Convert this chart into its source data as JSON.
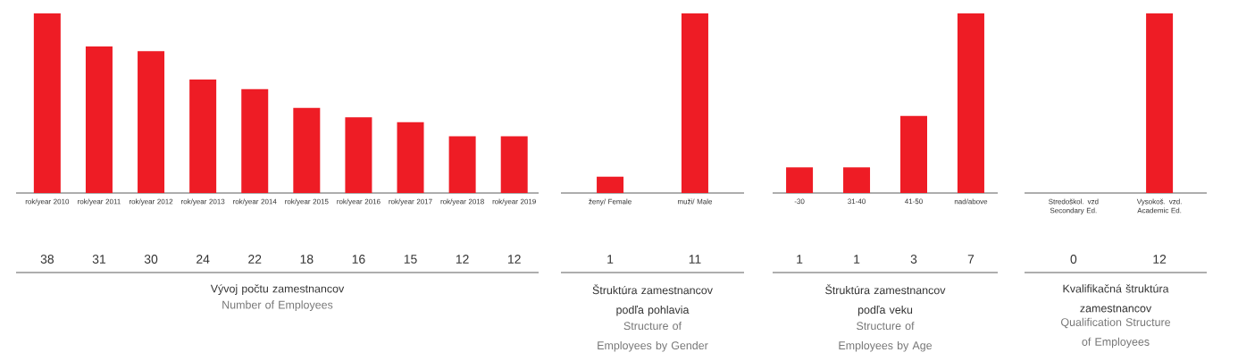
{
  "chart_data": [
    {
      "type": "bar",
      "title": "Vývoj počtu zamestnancov",
      "subtitle": "Number of Employees",
      "categories": [
        "rok/year 2010",
        "rok/year 2011",
        "rok/year 2012",
        "rok/year 2013",
        "rok/year 2014",
        "rok/year 2015",
        "rok/year 2016",
        "rok/year 2017",
        "rok/year 2018",
        "rok/year 2019"
      ],
      "values": [
        38,
        31,
        30,
        24,
        22,
        18,
        16,
        15,
        12,
        12
      ],
      "color": "#ee1c25",
      "data_labels": true
    },
    {
      "type": "bar",
      "title": "Štruktúra zamestnancov podľa pohlavia",
      "subtitle": "Structure of Employees by Gender",
      "categories": [
        "ženy/ Female",
        "muži/ Male"
      ],
      "values": [
        1,
        11
      ],
      "color": "#ee1c25",
      "data_labels": true
    },
    {
      "type": "bar",
      "title": "Štruktúra zamestnancov podľa veku",
      "subtitle": "Structure of Employees by Age",
      "categories": [
        "-30",
        "31-40",
        "41-50",
        "nad/above"
      ],
      "values": [
        1,
        1,
        3,
        7
      ],
      "color": "#ee1c25",
      "data_labels": true
    },
    {
      "type": "bar",
      "title": "Kvalifikačná štruktúra zamestnancov",
      "subtitle": "Qualification Structure of Employees",
      "categories": [
        "Stredoškol. vzd Secondary Ed.",
        "Vysokoš. vzd. Academic Ed."
      ],
      "values": [
        0,
        12
      ],
      "color": "#ee1c25",
      "data_labels": true
    }
  ]
}
